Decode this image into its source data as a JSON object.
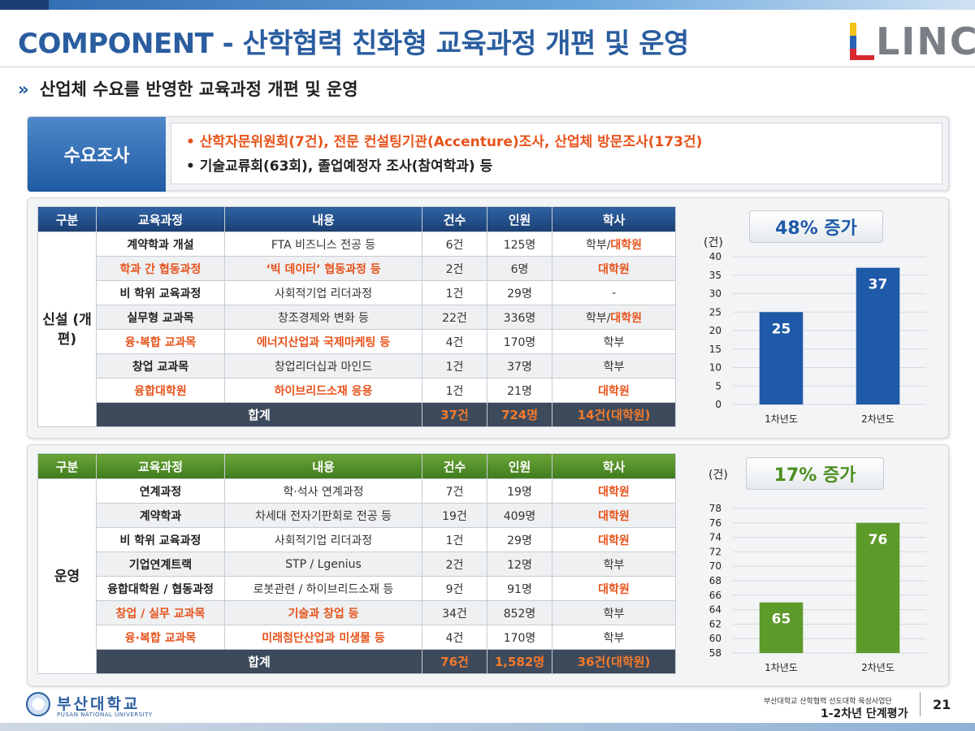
{
  "header": {
    "title": "COMPONENT - 산학협력 친화형 교육과정 개편 및 운영",
    "logo_text": "LINC"
  },
  "subheading": {
    "chevron": "»",
    "text": "산업체 수요를 반영한 교육과정 개편 및 운영"
  },
  "survey": {
    "label": "수요조사",
    "lines": [
      "• 산학자문위원회(7건), 전문 컨설팅기관(Accenture)조사, 산업체 방문조사(173건)",
      "• 기술교류회(63회), 졸업예정자 조사(참여학과) 등"
    ]
  },
  "new_section": {
    "columns": [
      "구분",
      "교육과정",
      "내용",
      "건수",
      "인원",
      "학사"
    ],
    "category": "신설 (개편)",
    "rows": [
      {
        "course": "계약학과 개설",
        "content": "FTA 비즈니스 전공 등",
        "count": "6건",
        "people": "125명",
        "degree_a": "학부",
        "degree_sep": "/",
        "degree_b": "대학원"
      },
      {
        "course": "학과 간 협동과정",
        "content": "‘빅 데이터’ 협동과정 등",
        "count": "2건",
        "people": "6명",
        "degree_a": "",
        "degree_sep": "",
        "degree_b": "대학원"
      },
      {
        "course": "비 학위 교육과정",
        "content": "사회적기업 리더과정",
        "count": "1건",
        "people": "29명",
        "degree_a": "-",
        "degree_sep": "",
        "degree_b": ""
      },
      {
        "course": "실무형 교과목",
        "content": "창조경제와 변화 등",
        "count": "22건",
        "people": "336명",
        "degree_a": "학부",
        "degree_sep": "/",
        "degree_b": "대학원"
      },
      {
        "course": "융·복합 교과목",
        "content": "에너지산업과 국제마케팅 등",
        "count": "4건",
        "people": "170명",
        "degree_a": "학부",
        "degree_sep": "",
        "degree_b": ""
      },
      {
        "course": "창업 교과목",
        "content": "창업리더십과 마인드",
        "count": "1건",
        "people": "37명",
        "degree_a": "학부",
        "degree_sep": "",
        "degree_b": ""
      },
      {
        "course": "융합대학원",
        "content": "하이브리드소재 응용",
        "count": "1건",
        "people": "21명",
        "degree_a": "",
        "degree_sep": "",
        "degree_b": "대학원"
      }
    ],
    "total": {
      "label": "합계",
      "count": "37건",
      "people": "724명",
      "degree": "14건(대학원)"
    },
    "badge": "48% 증가",
    "unit": "(건)"
  },
  "ops_section": {
    "columns": [
      "구분",
      "교육과정",
      "내용",
      "건수",
      "인원",
      "학사"
    ],
    "category": "운영",
    "rows": [
      {
        "course": "연계과정",
        "content": "학·석사 연계과정",
        "count": "7건",
        "people": "19명",
        "degree_a": "",
        "degree_sep": "",
        "degree_b": "대학원"
      },
      {
        "course": "계약학과",
        "content": "차세대 전자기판회로 전공 등",
        "count": "19건",
        "people": "409명",
        "degree_a": "",
        "degree_sep": "",
        "degree_b": "대학원"
      },
      {
        "course": "비 학위 교육과정",
        "content": "사회적기업 리더과정",
        "count": "1건",
        "people": "29명",
        "degree_a": "",
        "degree_sep": "",
        "degree_b": "대학원"
      },
      {
        "course": "기업연계트랙",
        "content": "STP / Lgenius",
        "count": "2건",
        "people": "12명",
        "degree_a": "학부",
        "degree_sep": "",
        "degree_b": ""
      },
      {
        "course": "융합대학원 / 협동과정",
        "content": "로봇관련 / 하이브리드소재 등",
        "count": "9건",
        "people": "91명",
        "degree_a": "",
        "degree_sep": "",
        "degree_b": "대학원"
      },
      {
        "course": "창업 / 실무 교과목",
        "content": "기술과 창업 등",
        "count": "34건",
        "people": "852명",
        "degree_a": "학부",
        "degree_sep": "",
        "degree_b": ""
      },
      {
        "course": "융·복합 교과목",
        "content": "미래첨단산업과 미생물 등",
        "count": "4건",
        "people": "170명",
        "degree_a": "학부",
        "degree_sep": "",
        "degree_b": ""
      }
    ],
    "total": {
      "label": "합계",
      "count": "76건",
      "people": "1,582명",
      "degree": "36건(대학원)"
    },
    "badge": "17% 증가",
    "unit": "(건)"
  },
  "chart_data": [
    {
      "type": "bar",
      "categories": [
        "1차년도",
        "2차년도"
      ],
      "values": [
        25,
        37
      ],
      "ylabel": "(건)",
      "ylim": [
        0,
        40
      ],
      "yticks": [
        0,
        5,
        10,
        15,
        20,
        25,
        30,
        35,
        40
      ],
      "color": "#1f5aa8",
      "annotation": "48% 증가",
      "grid": true
    },
    {
      "type": "bar",
      "categories": [
        "1차년도",
        "2차년도"
      ],
      "values": [
        65,
        76
      ],
      "ylabel": "(건)",
      "ylim": [
        58,
        78
      ],
      "yticks": [
        58,
        60,
        62,
        64,
        66,
        68,
        70,
        72,
        74,
        76,
        78
      ],
      "color": "#5c9a2a",
      "annotation": "17% 증가",
      "grid": true
    }
  ],
  "footer": {
    "university_kr": "부산대학교",
    "university_en": "PUSAN NATIONAL UNIVERSITY",
    "org": "부산대학교 산학협력 선도대학 육성사업단",
    "report": "1-2차년 단계평가",
    "page": "21"
  },
  "colors": {
    "title_blue": "#2a5d9f",
    "highlight_orange": "#e7531b",
    "header_navy": "#1b3f72",
    "header_green": "#3f7c1e",
    "total_row": "#3d4a5c"
  }
}
